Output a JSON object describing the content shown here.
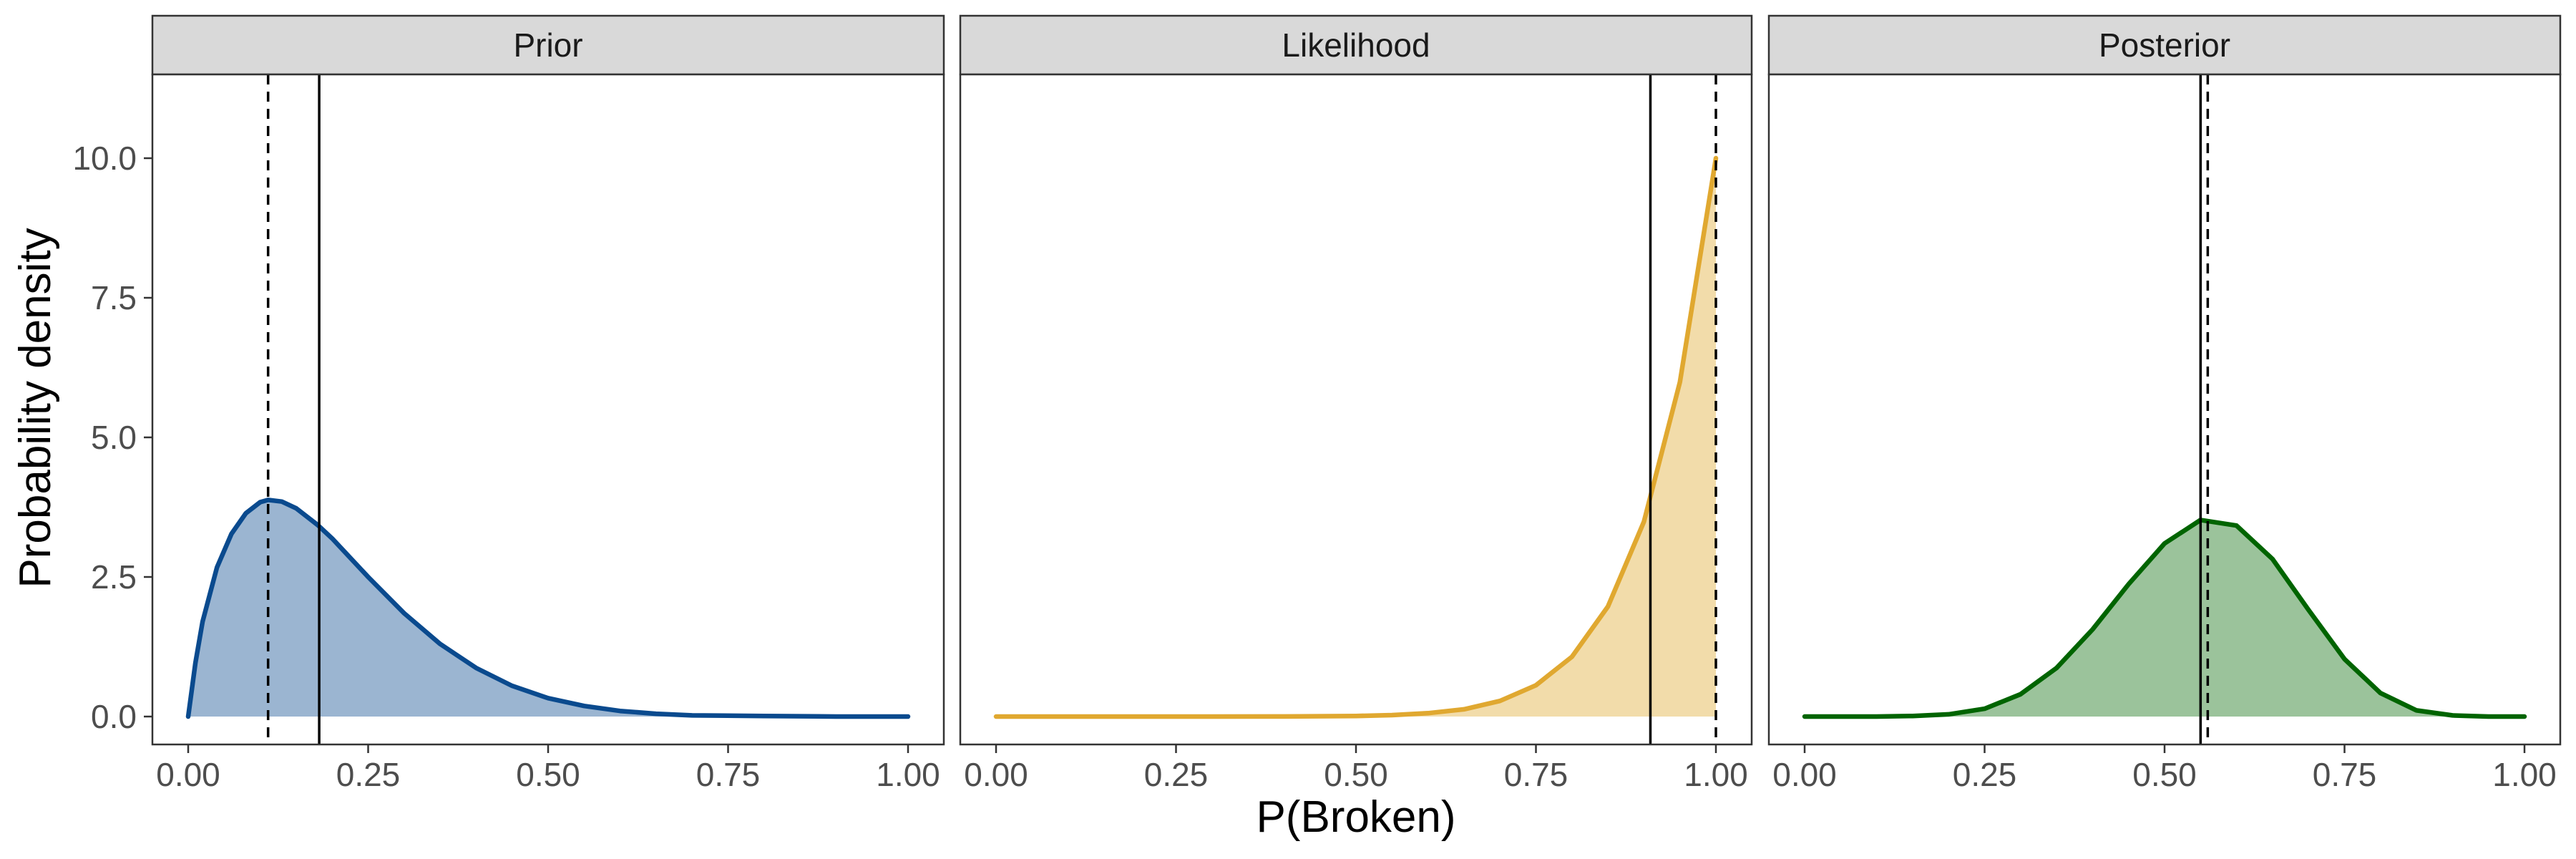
{
  "chart_data": {
    "type": "area",
    "xlabel": "P(Broken)",
    "ylabel": "Probability density",
    "xlim": [
      0,
      1
    ],
    "ylim": [
      -0.5,
      11.5
    ],
    "x_ticks": [
      0,
      0.25,
      0.5,
      0.75,
      1
    ],
    "x_tick_labels": [
      "0.00",
      "0.25",
      "0.50",
      "0.75",
      "1.00"
    ],
    "y_ticks": [
      0,
      2.5,
      5,
      7.5,
      10
    ],
    "y_tick_labels": [
      "0.0",
      "2.5",
      "5.0",
      "7.5",
      "10.0"
    ],
    "grid": false,
    "legend": "none",
    "panels": [
      {
        "title": "Prior",
        "color": "#0a4a8e",
        "fill": "#9bb5d1",
        "x": [
          0,
          0.01,
          0.02,
          0.04,
          0.06,
          0.08,
          0.1,
          0.111,
          0.13,
          0.15,
          0.18,
          0.2,
          0.25,
          0.3,
          0.35,
          0.4,
          0.45,
          0.5,
          0.55,
          0.6,
          0.65,
          0.7,
          0.8,
          0.9,
          1.0
        ],
        "y": [
          0,
          0.96,
          1.7,
          2.67,
          3.27,
          3.64,
          3.84,
          3.88,
          3.85,
          3.73,
          3.43,
          3.19,
          2.5,
          1.85,
          1.3,
          0.87,
          0.55,
          0.33,
          0.19,
          0.1,
          0.05,
          0.02,
          0.01,
          0,
          0
        ],
        "mean": 0.182,
        "mode": 0.111
      },
      {
        "title": "Likelihood",
        "color": "#e0a830",
        "fill": "#f2dcaa",
        "x": [
          0,
          0.1,
          0.2,
          0.3,
          0.4,
          0.5,
          0.55,
          0.6,
          0.65,
          0.7,
          0.75,
          0.8,
          0.85,
          0.9,
          0.95,
          1.0
        ],
        "y": [
          0,
          0,
          0,
          0,
          0.001,
          0.01,
          0.025,
          0.06,
          0.13,
          0.28,
          0.56,
          1.07,
          1.97,
          3.49,
          5.99,
          10.0
        ],
        "mean": 0.909,
        "mode": 1.0
      },
      {
        "title": "Posterior",
        "color": "#006400",
        "fill": "#9bc39b",
        "x": [
          0,
          0.05,
          0.1,
          0.15,
          0.2,
          0.25,
          0.3,
          0.35,
          0.4,
          0.45,
          0.5,
          0.55,
          0.6,
          0.65,
          0.7,
          0.75,
          0.8,
          0.85,
          0.9,
          0.95,
          1.0
        ],
        "y": [
          0,
          0,
          0,
          0.01,
          0.04,
          0.14,
          0.4,
          0.87,
          1.56,
          2.37,
          3.1,
          3.52,
          3.42,
          2.82,
          1.91,
          1.03,
          0.42,
          0.11,
          0.02,
          0,
          0
        ],
        "mean": 0.55,
        "mode": 0.56
      }
    ]
  }
}
